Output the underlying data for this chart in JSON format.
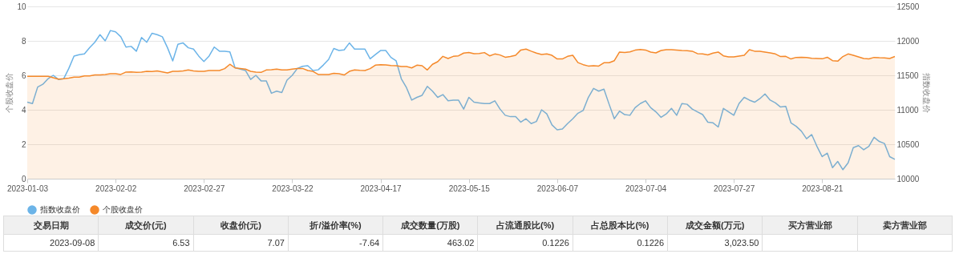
{
  "chart_data": {
    "type": "line",
    "ylabel": "个股收盘价",
    "y2label": "指数收盘价",
    "ylim": [
      0,
      10
    ],
    "yticks": [
      0,
      2,
      4,
      6,
      8,
      10
    ],
    "y2lim": [
      10000,
      12500
    ],
    "y2ticks": [
      10000,
      10500,
      11000,
      11500,
      12000,
      12500
    ],
    "grid": "y",
    "legend": "bottom",
    "categories": [
      "2023-01-03",
      null,
      null,
      null,
      null,
      null,
      null,
      null,
      null,
      null,
      null,
      null,
      null,
      null,
      null,
      null,
      null,
      "2023-02-02",
      null,
      null,
      null,
      null,
      null,
      null,
      null,
      null,
      null,
      null,
      null,
      null,
      null,
      null,
      null,
      null,
      "2023-02-27",
      null,
      null,
      null,
      null,
      null,
      null,
      null,
      null,
      null,
      null,
      null,
      null,
      null,
      null,
      null,
      null,
      "2023-03-22",
      null,
      null,
      null,
      null,
      null,
      null,
      null,
      null,
      null,
      null,
      null,
      null,
      null,
      null,
      null,
      null,
      "2023-04-17",
      null,
      null,
      null,
      null,
      null,
      null,
      null,
      null,
      null,
      null,
      null,
      null,
      null,
      null,
      null,
      null,
      "2023-05-15",
      null,
      null,
      null,
      null,
      null,
      null,
      null,
      null,
      null,
      null,
      null,
      null,
      null,
      null,
      null,
      null,
      "2023-06-07",
      null,
      null,
      null,
      null,
      null,
      null,
      null,
      null,
      null,
      null,
      null,
      null,
      null,
      null,
      null,
      null,
      "2023-07-04",
      null,
      null,
      null,
      null,
      null,
      null,
      null,
      null,
      null,
      null,
      null,
      null,
      null,
      null,
      null,
      null,
      "2023-07-27",
      null,
      null,
      null,
      null,
      null,
      null,
      null,
      null,
      null,
      null,
      null,
      null,
      null,
      null,
      null,
      null,
      "2023-08-21",
      null,
      null,
      null,
      null,
      null,
      null,
      null,
      null,
      null,
      null,
      null,
      null,
      null,
      null
    ],
    "series": [
      {
        "name": "指数收盘价",
        "axis": "y2",
        "color": "#6cb4e8",
        "values": [
          11110,
          11090,
          11330,
          11370,
          11450,
          11500,
          11440,
          11450,
          11600,
          11780,
          11800,
          11810,
          11900,
          11980,
          12090,
          12000,
          12150,
          12130,
          12060,
          11910,
          11920,
          11850,
          12050,
          11980,
          12110,
          12090,
          12060,
          11900,
          11710,
          11950,
          11970,
          11900,
          11880,
          11780,
          11700,
          11780,
          11910,
          11850,
          11850,
          11840,
          11610,
          11590,
          11570,
          11440,
          11500,
          11420,
          11420,
          11240,
          11270,
          11250,
          11430,
          11500,
          11600,
          11630,
          11640,
          11570,
          11580,
          11650,
          11730,
          11890,
          11860,
          11870,
          11970,
          11880,
          11880,
          11880,
          11740,
          11800,
          11860,
          11860,
          11760,
          11710,
          11450,
          11320,
          11140,
          11180,
          11210,
          11340,
          11270,
          11180,
          11220,
          11130,
          11140,
          11140,
          11010,
          11180,
          11110,
          11100,
          11090,
          11090,
          11130,
          11010,
          10920,
          10900,
          10900,
          10820,
          10870,
          10800,
          10830,
          11000,
          10940,
          10780,
          10710,
          10720,
          10800,
          10870,
          10950,
          10990,
          11180,
          11310,
          11270,
          11300,
          11080,
          10870,
          10980,
          10930,
          10920,
          11030,
          11090,
          11130,
          11030,
          10970,
          10890,
          10940,
          11020,
          10920,
          11090,
          11080,
          11010,
          10970,
          10930,
          10820,
          10810,
          10750,
          11020,
          10970,
          10920,
          11090,
          11180,
          11140,
          11110,
          11160,
          11230,
          11140,
          11100,
          11040,
          11050,
          10810,
          10760,
          10690,
          10580,
          10640,
          10470,
          10320,
          10370,
          10160,
          10250,
          10130,
          10230,
          10450,
          10480,
          10420,
          10470,
          10600,
          10540,
          10510,
          10320,
          10280
        ]
      },
      {
        "name": "个股收盘价",
        "type": "area",
        "color": "#f5892a",
        "values": [
          5.94,
          5.94,
          5.94,
          5.94,
          5.94,
          5.86,
          5.78,
          5.8,
          5.84,
          5.9,
          5.9,
          5.97,
          5.97,
          6.02,
          6.02,
          6.05,
          6.09,
          6.09,
          6.05,
          6.19,
          6.2,
          6.17,
          6.19,
          6.23,
          6.22,
          6.26,
          6.2,
          6.14,
          6.23,
          6.23,
          6.26,
          6.31,
          6.26,
          6.23,
          6.23,
          6.28,
          6.28,
          6.28,
          6.39,
          6.64,
          6.43,
          6.4,
          6.36,
          6.23,
          6.19,
          6.17,
          6.31,
          6.33,
          6.36,
          6.31,
          6.31,
          6.36,
          6.39,
          6.4,
          6.28,
          6.23,
          6.05,
          6.05,
          6.05,
          6.12,
          6.09,
          6.02,
          6.23,
          6.31,
          6.29,
          6.28,
          6.39,
          6.59,
          6.62,
          6.6,
          6.57,
          6.56,
          6.51,
          6.51,
          6.43,
          6.59,
          6.56,
          6.31,
          6.64,
          6.79,
          7.1,
          6.98,
          7.1,
          7.13,
          7.29,
          7.33,
          7.26,
          7.27,
          7.32,
          7.13,
          7.24,
          7.18,
          7.05,
          7.09,
          7.16,
          7.47,
          7.52,
          7.4,
          7.29,
          7.21,
          7.24,
          7.16,
          6.95,
          6.95,
          7.1,
          7.16,
          6.74,
          6.62,
          6.54,
          6.56,
          6.54,
          6.73,
          6.73,
          6.85,
          7.35,
          7.33,
          7.36,
          7.46,
          7.5,
          7.47,
          7.35,
          7.3,
          7.44,
          7.49,
          7.49,
          7.47,
          7.44,
          7.43,
          7.4,
          7.26,
          7.24,
          7.19,
          7.29,
          7.35,
          7.13,
          7.07,
          7.07,
          7.12,
          7.16,
          7.49,
          7.4,
          7.4,
          7.35,
          7.3,
          7.24,
          7.09,
          7.1,
          6.95,
          7.04,
          7.05,
          7.04,
          6.99,
          6.98,
          6.96,
          7.05,
          6.85,
          6.82,
          7.09,
          7.24,
          7.16,
          7.07,
          6.98,
          6.95,
          7.04,
          7.02,
          7.01,
          6.98,
          7.09
        ]
      }
    ],
    "annotations": [
      "交易日期",
      "成交价(元)",
      "收盘价(元)",
      "折/溢价率(%)",
      "成交数量(万股)",
      "占流通股比(%)",
      "占总股本比(%)",
      "成交金额(万元)",
      "买方营业部",
      "卖方营业部",
      "2023-09-08",
      "6.53",
      "7.07",
      "-7.64",
      "463.02",
      "0.1226",
      "0.1226",
      "3,023.50"
    ]
  }
}
